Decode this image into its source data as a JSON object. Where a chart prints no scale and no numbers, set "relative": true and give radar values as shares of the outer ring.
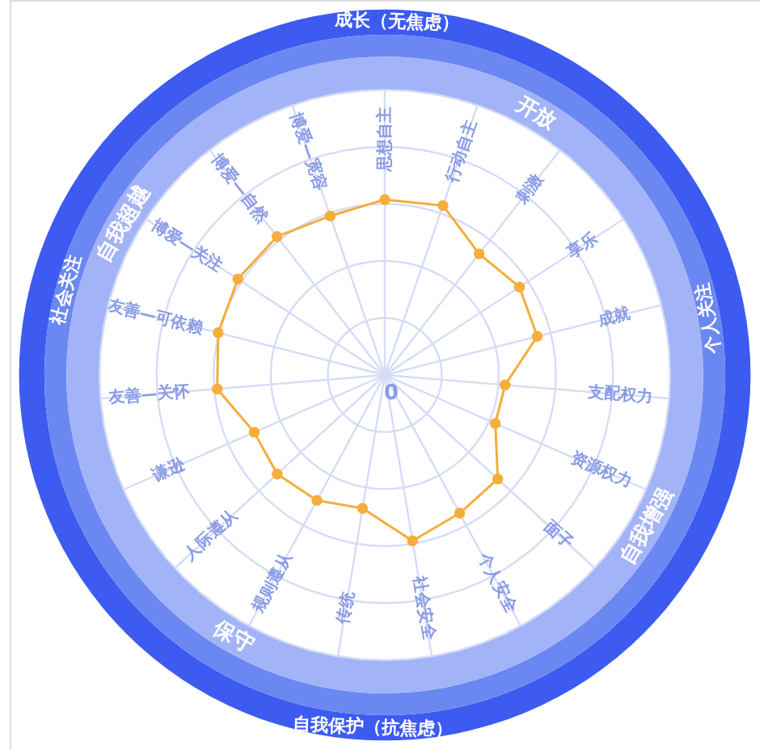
{
  "chart_data": {
    "type": "radar",
    "relative": true,
    "grid": true,
    "marker": "circle",
    "categories": [
      "思想自主",
      "行动自主",
      "刺激",
      "享乐",
      "成就",
      "支配权力",
      "资源权力",
      "面子",
      "个人安全",
      "社会安全",
      "传统",
      "规则遵从",
      "人际遵从",
      "谦逊",
      "友善—关怀",
      "友善—可依赖",
      "博爱—关注",
      "博爱—自然",
      "博爱—宽容"
    ],
    "series": [
      {
        "color": "#f5ad3b",
        "values": [
          0.48,
          0.49,
          0.42,
          0.44,
          0.43,
          0.33,
          0.33,
          0.42,
          0.43,
          0.46,
          0.37,
          0.39,
          0.4,
          0.39,
          0.46,
          0.47,
          0.48,
          0.48,
          0.46
        ]
      }
    ],
    "annotations": [
      "0",
      "开放",
      "自我增强",
      "保守",
      "自我超越",
      "个人关注",
      "社会关注",
      "成长（无焦虑）",
      "自我保护（抗焦虑）"
    ]
  }
}
